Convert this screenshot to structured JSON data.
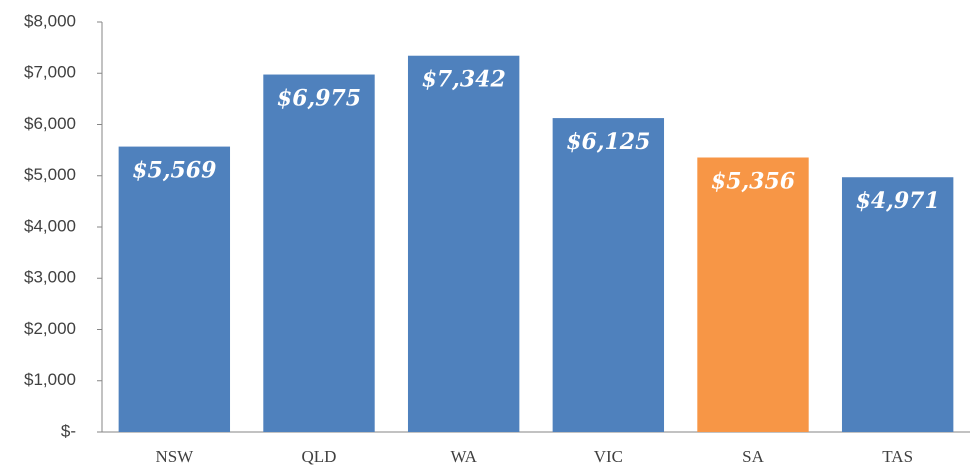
{
  "chart_data": {
    "type": "bar",
    "categories": [
      "NSW",
      "QLD",
      "WA",
      "VIC",
      "SA",
      "TAS"
    ],
    "values": [
      5569,
      6975,
      7342,
      6125,
      5356,
      4971
    ],
    "value_labels": [
      "$5,569",
      "$6,975",
      "$7,342",
      "$6,125",
      "$5,356",
      "$4,971"
    ],
    "colors": [
      "#4f81bd",
      "#4f81bd",
      "#4f81bd",
      "#4f81bd",
      "#f79646",
      "#4f81bd"
    ],
    "ylim": [
      0,
      8000
    ],
    "yticks": [
      {
        "value": 0,
        "label": "$-"
      },
      {
        "value": 1000,
        "label": "$1,000"
      },
      {
        "value": 2000,
        "label": "$2,000"
      },
      {
        "value": 3000,
        "label": "$3,000"
      },
      {
        "value": 4000,
        "label": "$4,000"
      },
      {
        "value": 5000,
        "label": "$5,000"
      },
      {
        "value": 6000,
        "label": "$6,000"
      },
      {
        "value": 7000,
        "label": "$7,000"
      },
      {
        "value": 8000,
        "label": "$8,000"
      }
    ],
    "grid": false
  }
}
